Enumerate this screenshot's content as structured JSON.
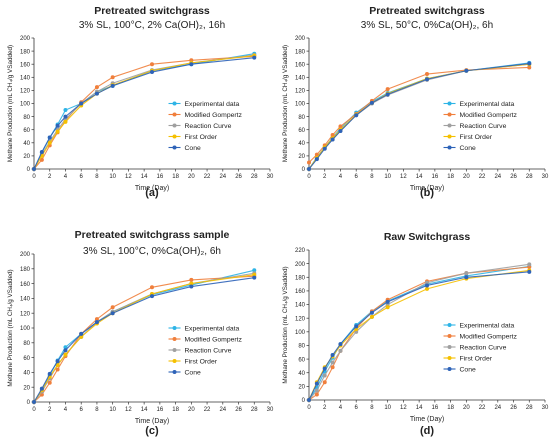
{
  "figure": {
    "panel_letters": [
      "(a)",
      "(b)",
      "(c)",
      "(d)"
    ]
  },
  "legend_labels": [
    "Experimental data",
    "Modified Gompertz",
    "Reaction Curve",
    "First Order",
    "Cone"
  ],
  "colors": {
    "Experimental data": "#2eb4e6",
    "Modified Gompertz": "#f07f3c",
    "Reaction Curve": "#a0a0a0",
    "First Order": "#f5c000",
    "Cone": "#2e63b8"
  },
  "chart_data": [
    {
      "type": "line",
      "title": "Pretreated switchgrass",
      "subtitle": "3% SL, 100°C, 2% Ca(OH)₂, 16h",
      "xlabel": "Time (Day)",
      "ylabel": "Methane Production (mL CH₄/g VSadded)",
      "xlim": [
        0,
        30
      ],
      "ylim": [
        0,
        200
      ],
      "xticks": [
        0,
        2,
        4,
        6,
        8,
        10,
        12,
        14,
        16,
        18,
        20,
        22,
        24,
        26,
        28,
        30
      ],
      "yticks": [
        0,
        20,
        40,
        60,
        80,
        100,
        120,
        140,
        160,
        180,
        200
      ],
      "grid": false,
      "legend": "lower-right",
      "x": [
        0,
        1,
        2,
        3,
        4,
        6,
        8,
        10,
        15,
        20,
        28
      ],
      "series": [
        {
          "name": "Experimental data",
          "values": [
            0,
            25,
            48,
            68,
            90,
            100,
            118,
            127,
            150,
            160,
            176
          ]
        },
        {
          "name": "Modified Gompertz",
          "values": [
            0,
            14,
            36,
            56,
            74,
            102,
            125,
            140,
            160,
            166,
            172
          ]
        },
        {
          "name": "Reaction Curve",
          "values": [
            0,
            22,
            42,
            60,
            76,
            100,
            118,
            131,
            151,
            162,
            174
          ]
        },
        {
          "name": "First Order",
          "values": [
            0,
            20,
            40,
            57,
            72,
            97,
            115,
            128,
            150,
            162,
            173
          ]
        },
        {
          "name": "Cone",
          "values": [
            0,
            26,
            48,
            66,
            80,
            100,
            115,
            127,
            148,
            160,
            170
          ]
        }
      ]
    },
    {
      "type": "line",
      "title": "Pretreated switchgrass",
      "subtitle": "3% SL, 50°C, 0%Ca(OH)₂, 6h",
      "xlabel": "Time (Day)",
      "ylabel": "Methane Production (mL CH₄/g VSadded)",
      "xlim": [
        0,
        30
      ],
      "ylim": [
        0,
        200
      ],
      "xticks": [
        0,
        2,
        4,
        6,
        8,
        10,
        12,
        14,
        16,
        18,
        20,
        22,
        24,
        26,
        28,
        30
      ],
      "yticks": [
        0,
        20,
        40,
        60,
        80,
        100,
        120,
        140,
        160,
        180,
        200
      ],
      "grid": false,
      "legend": "lower-right",
      "x": [
        0,
        1,
        2,
        3,
        4,
        6,
        8,
        10,
        15,
        20,
        28
      ],
      "series": [
        {
          "name": "Experimental data",
          "values": [
            0,
            18,
            33,
            48,
            62,
            86,
            103,
            116,
            138,
            150,
            162
          ]
        },
        {
          "name": "Modified Gompertz",
          "values": [
            10,
            22,
            36,
            52,
            65,
            84,
            104,
            122,
            145,
            151,
            155
          ]
        },
        {
          "name": "Reaction Curve",
          "values": [
            0,
            16,
            32,
            45,
            58,
            82,
            100,
            113,
            136,
            150,
            160
          ]
        },
        {
          "name": "First Order",
          "values": [
            0,
            17,
            33,
            47,
            60,
            83,
            101,
            115,
            138,
            150,
            160
          ]
        },
        {
          "name": "Cone",
          "values": [
            0,
            15,
            31,
            45,
            58,
            82,
            101,
            114,
            137,
            150,
            161
          ]
        }
      ]
    },
    {
      "type": "line",
      "title": "Pretreated switchgrass sample",
      "subtitle": "3% SL, 100°C, 0%Ca(OH)₂, 6h",
      "xlabel": "Time (Day)",
      "ylabel": "Methane Production (mL CH₄/g VSadded)",
      "xlim": [
        0,
        30
      ],
      "ylim": [
        0,
        200
      ],
      "xticks": [
        0,
        2,
        4,
        6,
        8,
        10,
        12,
        14,
        16,
        18,
        20,
        22,
        24,
        26,
        28,
        30
      ],
      "yticks": [
        0,
        20,
        40,
        60,
        80,
        100,
        120,
        140,
        160,
        180,
        200
      ],
      "grid": false,
      "legend": "lower-right",
      "x": [
        0,
        1,
        2,
        3,
        4,
        6,
        8,
        10,
        15,
        20,
        28
      ],
      "series": [
        {
          "name": "Experimental data",
          "values": [
            0,
            16,
            36,
            56,
            74,
            92,
            108,
            122,
            145,
            158,
            178
          ]
        },
        {
          "name": "Modified Gompertz",
          "values": [
            0,
            10,
            26,
            44,
            62,
            92,
            112,
            128,
            155,
            165,
            170
          ]
        },
        {
          "name": "Reaction Curve",
          "values": [
            0,
            14,
            32,
            50,
            64,
            88,
            108,
            122,
            146,
            160,
            174
          ]
        },
        {
          "name": "First Order",
          "values": [
            0,
            16,
            34,
            50,
            64,
            88,
            106,
            120,
            146,
            160,
            172
          ]
        },
        {
          "name": "Cone",
          "values": [
            0,
            18,
            38,
            55,
            70,
            92,
            108,
            120,
            143,
            156,
            168
          ]
        }
      ]
    },
    {
      "type": "line",
      "title": "Raw Switchgrass",
      "subtitle": "",
      "xlabel": "Time (Day)",
      "ylabel": "Methane Production (mL CH₄/g VSadded)",
      "xlim": [
        0,
        30
      ],
      "ylim": [
        0,
        220
      ],
      "xticks": [
        0,
        2,
        4,
        6,
        8,
        10,
        12,
        14,
        16,
        18,
        20,
        22,
        24,
        26,
        28,
        30
      ],
      "yticks": [
        0,
        20,
        40,
        60,
        80,
        100,
        120,
        140,
        160,
        180,
        200,
        220
      ],
      "grid": false,
      "legend": "lower-right",
      "x": [
        0,
        1,
        2,
        3,
        4,
        6,
        8,
        10,
        15,
        20,
        28
      ],
      "series": [
        {
          "name": "Experimental data",
          "values": [
            0,
            18,
            42,
            62,
            82,
            110,
            130,
            145,
            170,
            182,
            196
          ]
        },
        {
          "name": "Modified Gompertz",
          "values": [
            0,
            8,
            26,
            48,
            72,
            105,
            130,
            147,
            174,
            186,
            195
          ]
        },
        {
          "name": "Reaction Curve",
          "values": [
            0,
            14,
            36,
            55,
            72,
            100,
            122,
            140,
            172,
            186,
            199
          ]
        },
        {
          "name": "First Order",
          "values": [
            0,
            26,
            48,
            64,
            80,
            104,
            122,
            136,
            163,
            178,
            190
          ]
        },
        {
          "name": "Cone",
          "values": [
            0,
            24,
            46,
            66,
            82,
            108,
            128,
            144,
            168,
            180,
            188
          ]
        }
      ]
    }
  ]
}
